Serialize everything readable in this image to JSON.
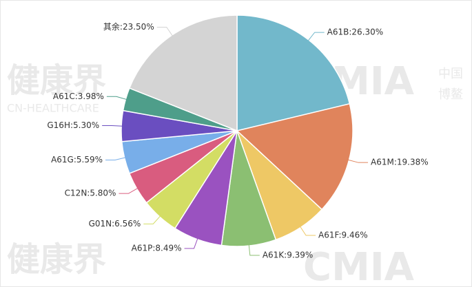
{
  "chart_data": {
    "type": "pie",
    "values": [
      26.3,
      19.38,
      9.46,
      9.39,
      8.49,
      6.56,
      5.8,
      5.59,
      5.3,
      3.98,
      23.5
    ],
    "value_labels": [
      "A61B:26.30%",
      "A61M:19.38%",
      "A61F:9.46%",
      "A61K:9.39%",
      "A61P:8.49%",
      "G01N:6.56%",
      "C12N:5.80%",
      "A61G:5.59%",
      "G16H:5.30%",
      "A61C:3.98%",
      "其余:23.50%"
    ],
    "colors": [
      "#72b8cb",
      "#e0845c",
      "#eec865",
      "#8bbf72",
      "#9a52c0",
      "#d3dd64",
      "#d95c7f",
      "#78aee9",
      "#6a4ec0",
      "#4e9e8a",
      "#d4d4d4"
    ],
    "watermarks": [
      "健康界",
      "CN-HEALTHCARE",
      "CMIA",
      "中国",
      "博鳌"
    ]
  }
}
